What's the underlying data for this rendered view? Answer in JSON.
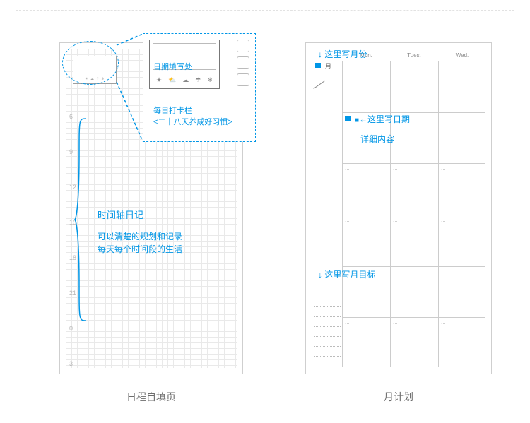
{
  "accent_color": "#0096e6",
  "captions": {
    "left": "日程自填页",
    "right": "月计划"
  },
  "left": {
    "time_ticks": [
      6,
      9,
      12,
      15,
      18,
      21,
      0,
      3
    ],
    "mini_weather_icons": [
      "☀",
      "☁",
      "☂",
      "❄"
    ],
    "zoom": {
      "date_label": "日期填写处",
      "checkin_label_1": "每日打卡栏",
      "checkin_label_2": "<二十八天养成好习惯>",
      "weather_icons": [
        "☀",
        "⛅",
        "☁",
        "☂",
        "❄"
      ]
    },
    "timeline_title": "时间轴日记",
    "timeline_desc_1": "可以清楚的规划和记录",
    "timeline_desc_2": "每天每个时间段的生活"
  },
  "right": {
    "day_headers": [
      "Mon.",
      "Tues.",
      "Wed."
    ],
    "month_char": "月",
    "anno_month": "↓ 这里写月份",
    "anno_date": "←这里写日期",
    "anno_detail": "详细内容",
    "anno_goal": "↓ 这里写月目标",
    "date_marker_char": "■",
    "ellipsis": "..."
  }
}
